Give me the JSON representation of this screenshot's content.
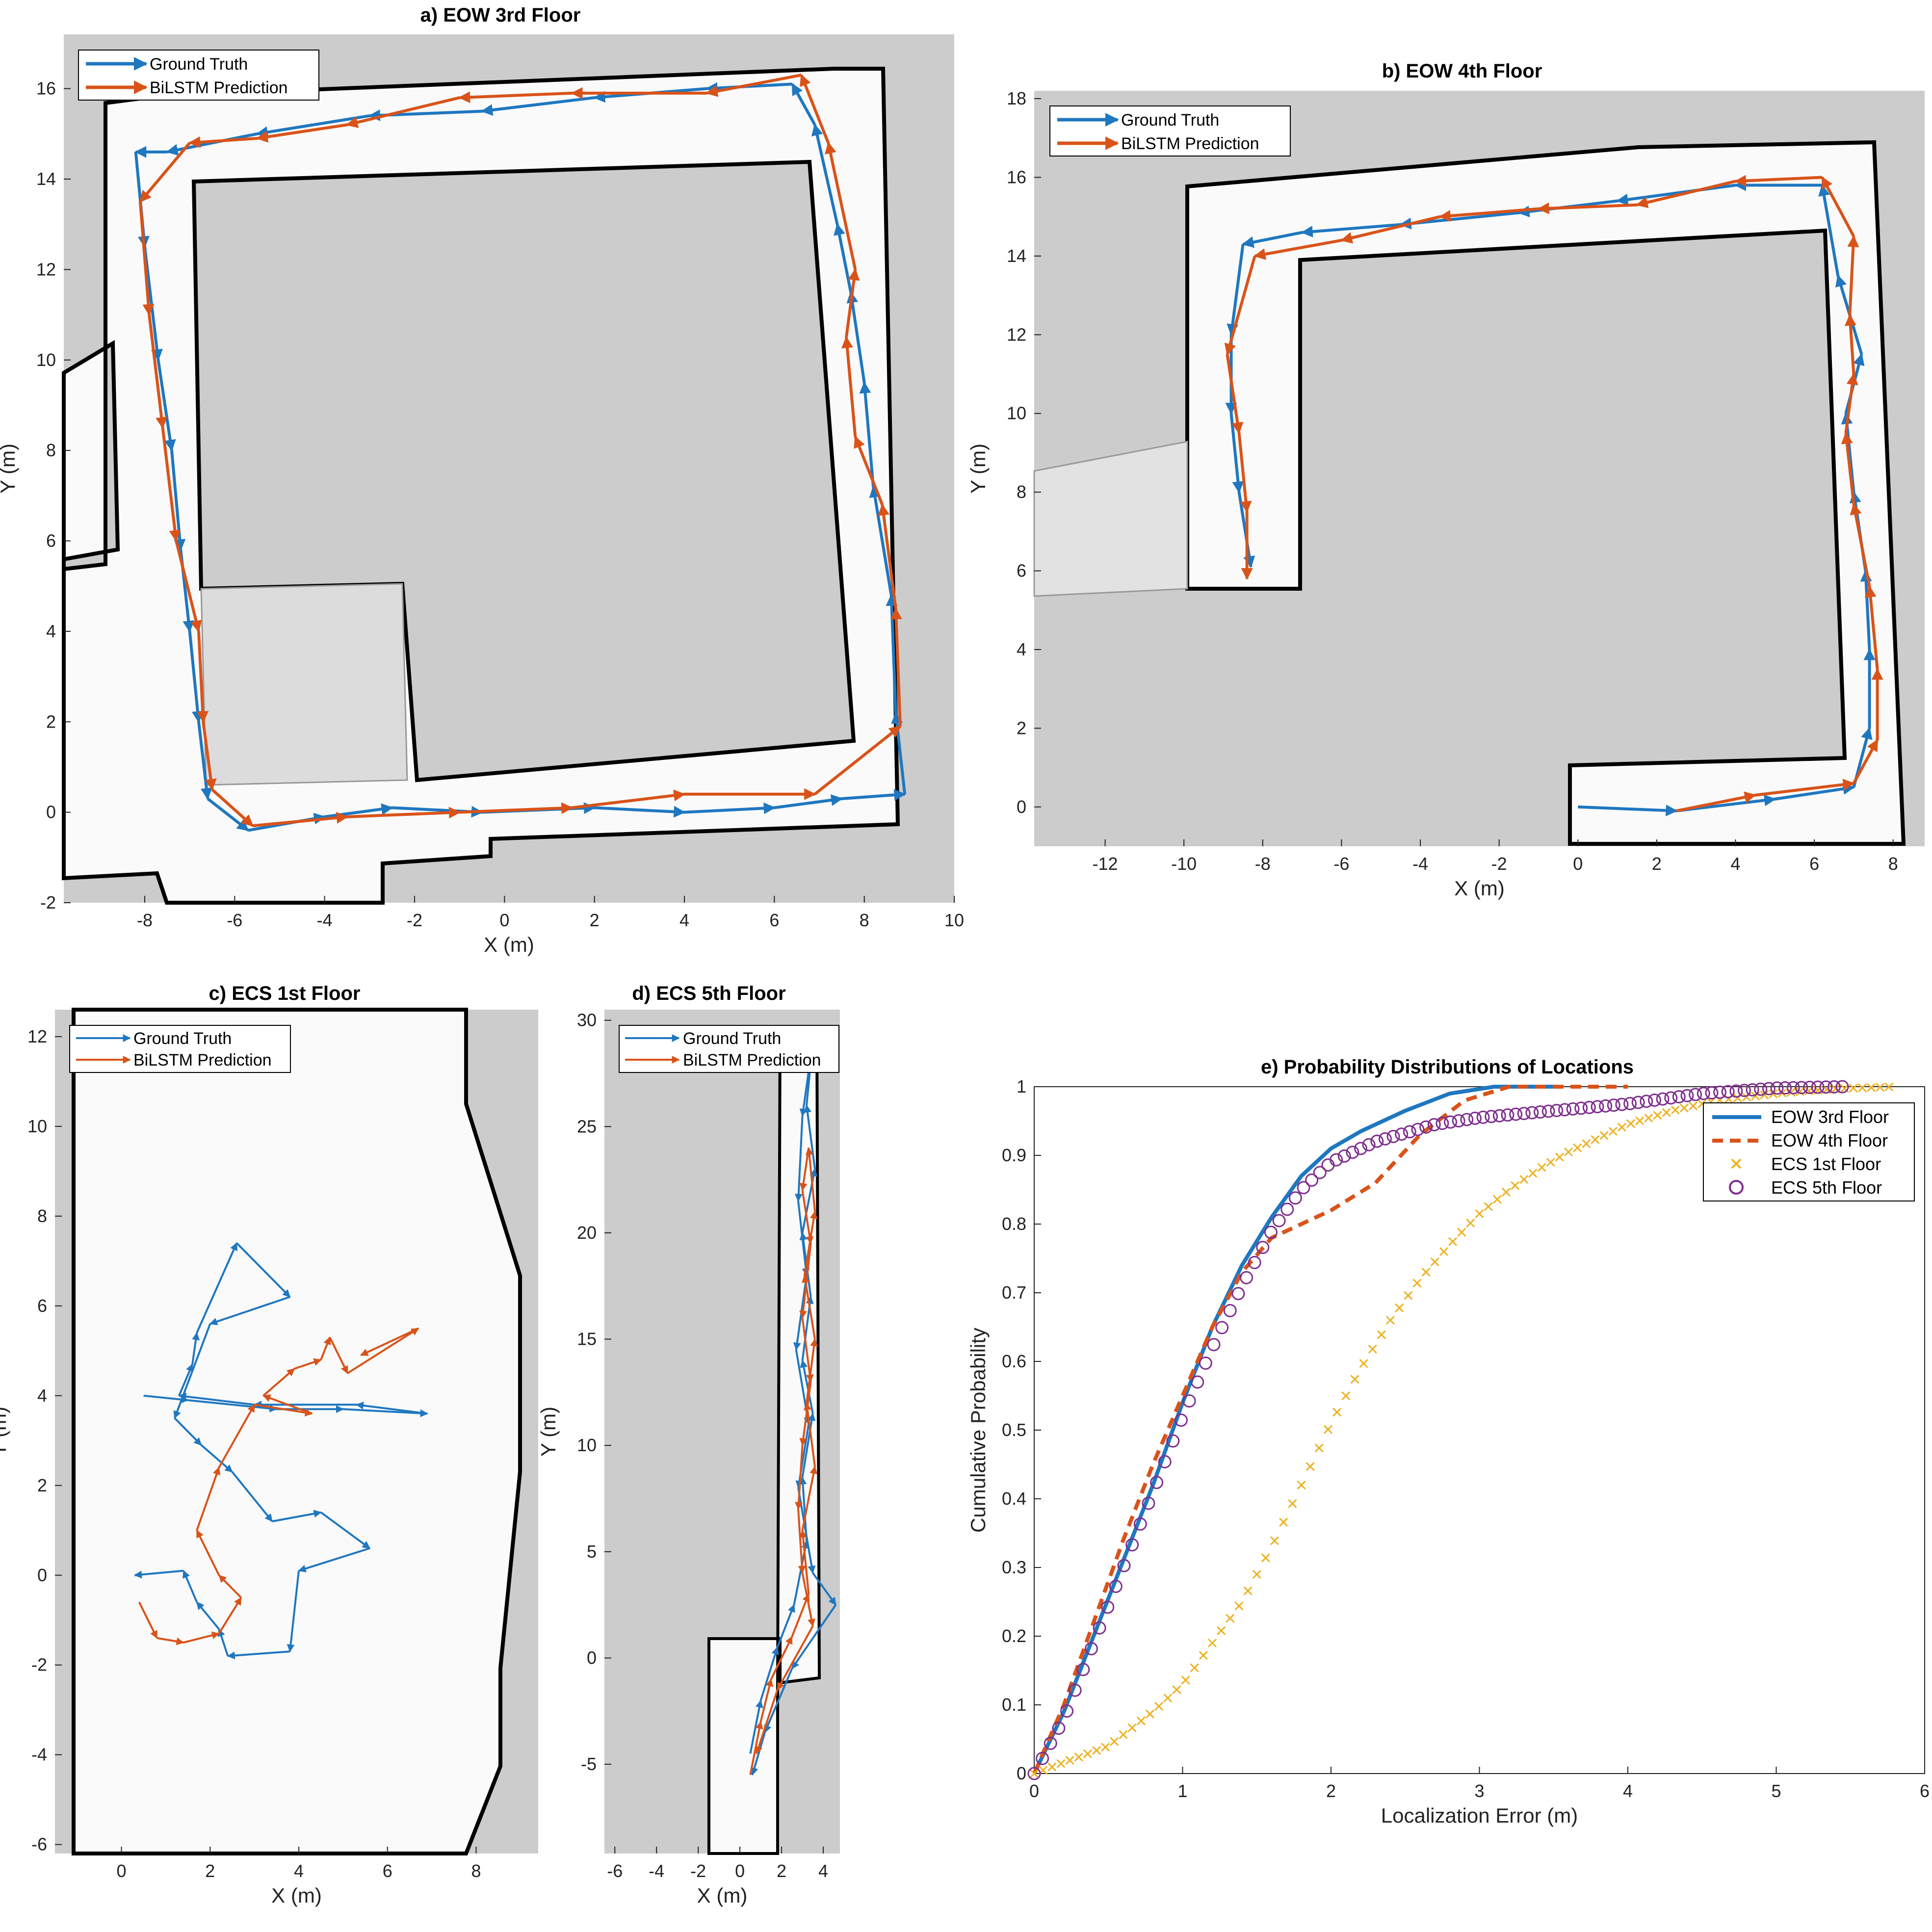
{
  "colors": {
    "ground_truth": "#1f77c0",
    "prediction": "#d95319",
    "ecs1": "#edb120",
    "ecs5": "#7e2f8e",
    "map_gray": "#cccccc",
    "free": "#fafafa",
    "wall": "#000000"
  },
  "legend": {
    "ground_truth": "Ground Truth",
    "prediction": "BiLSTM Prediction"
  },
  "chart_data": [
    {
      "id": "a",
      "type": "map-trajectory",
      "title": "a) EOW 3rd Floor",
      "xlabel": "X (m)",
      "ylabel": "Y (m)",
      "xlim": [
        -9.8,
        10.0
      ],
      "ylim": [
        -2.0,
        17.2
      ],
      "xticks": [
        -8,
        -6,
        -4,
        -2,
        0,
        2,
        4,
        6,
        8,
        10
      ],
      "yticks": [
        -2,
        0,
        2,
        4,
        6,
        8,
        10,
        12,
        14,
        16
      ],
      "series": [
        {
          "name": "Ground Truth",
          "points": [
            [
              8.9,
              0.4
            ],
            [
              8.7,
              2.2
            ],
            [
              8.6,
              4.8
            ],
            [
              8.2,
              7.2
            ],
            [
              8.0,
              9.5
            ],
            [
              7.7,
              11.5
            ],
            [
              7.4,
              13.0
            ],
            [
              6.9,
              15.2
            ],
            [
              6.4,
              16.1
            ],
            [
              4.5,
              16.0
            ],
            [
              2.0,
              15.8
            ],
            [
              -0.5,
              15.5
            ],
            [
              -3.0,
              15.4
            ],
            [
              -5.5,
              15.0
            ],
            [
              -7.5,
              14.6
            ],
            [
              -8.2,
              14.6
            ],
            [
              -8.0,
              12.5
            ],
            [
              -7.7,
              10.0
            ],
            [
              -7.4,
              8.0
            ],
            [
              -7.2,
              5.8
            ],
            [
              -7.0,
              4.0
            ],
            [
              -6.8,
              2.0
            ],
            [
              -6.6,
              0.3
            ],
            [
              -5.7,
              -0.4
            ],
            [
              -4.0,
              -0.1
            ],
            [
              -2.5,
              0.1
            ],
            [
              -0.5,
              0.0
            ],
            [
              2.0,
              0.1
            ],
            [
              4.0,
              0.0
            ],
            [
              6.0,
              0.1
            ],
            [
              7.5,
              0.3
            ],
            [
              8.9,
              0.4
            ]
          ]
        },
        {
          "name": "BiLSTM Prediction",
          "points": [
            [
              6.9,
              0.4
            ],
            [
              8.8,
              1.9
            ],
            [
              8.7,
              4.5
            ],
            [
              8.4,
              6.8
            ],
            [
              7.8,
              8.3
            ],
            [
              7.6,
              10.5
            ],
            [
              7.8,
              12.0
            ],
            [
              7.2,
              14.8
            ],
            [
              6.6,
              16.3
            ],
            [
              4.5,
              15.9
            ],
            [
              1.5,
              15.9
            ],
            [
              -1.0,
              15.8
            ],
            [
              -3.5,
              15.2
            ],
            [
              -5.5,
              14.9
            ],
            [
              -7.0,
              14.8
            ],
            [
              -8.1,
              13.5
            ],
            [
              -7.9,
              11.0
            ],
            [
              -7.6,
              8.5
            ],
            [
              -7.3,
              6.0
            ],
            [
              -6.8,
              4.0
            ],
            [
              -6.7,
              2.0
            ],
            [
              -6.5,
              0.5
            ],
            [
              -5.6,
              -0.3
            ],
            [
              -3.5,
              -0.1
            ],
            [
              -1.0,
              0.0
            ],
            [
              1.5,
              0.1
            ],
            [
              4.0,
              0.4
            ],
            [
              6.9,
              0.4
            ]
          ]
        }
      ]
    },
    {
      "id": "b",
      "type": "map-trajectory",
      "title": "b) EOW 4th Floor",
      "xlabel": "X (m)",
      "ylabel": "Y (m)",
      "xlim": [
        -13.8,
        8.8
      ],
      "ylim": [
        -1.0,
        18.2
      ],
      "xticks": [
        -12,
        -10,
        -8,
        -6,
        -4,
        -2,
        0,
        2,
        4,
        6,
        8
      ],
      "yticks": [
        0,
        2,
        4,
        6,
        8,
        10,
        12,
        14,
        16,
        18
      ],
      "series": [
        {
          "name": "Ground Truth",
          "points": [
            [
              0.0,
              0.0
            ],
            [
              2.5,
              -0.1
            ],
            [
              5.0,
              0.2
            ],
            [
              7.0,
              0.5
            ],
            [
              7.4,
              2.0
            ],
            [
              7.4,
              4.0
            ],
            [
              7.3,
              6.0
            ],
            [
              7.0,
              8.0
            ],
            [
              6.8,
              10.0
            ],
            [
              7.2,
              11.5
            ],
            [
              6.6,
              13.5
            ],
            [
              6.2,
              15.8
            ],
            [
              4.0,
              15.8
            ],
            [
              1.0,
              15.4
            ],
            [
              -1.5,
              15.1
            ],
            [
              -4.5,
              14.8
            ],
            [
              -7.0,
              14.6
            ],
            [
              -8.5,
              14.3
            ],
            [
              -8.8,
              12.0
            ],
            [
              -8.8,
              10.0
            ],
            [
              -8.6,
              8.0
            ],
            [
              -8.3,
              6.1
            ]
          ]
        },
        {
          "name": "BiLSTM Prediction",
          "points": [
            [
              2.5,
              -0.1
            ],
            [
              4.5,
              0.3
            ],
            [
              7.0,
              0.6
            ],
            [
              7.6,
              1.7
            ],
            [
              7.6,
              3.5
            ],
            [
              7.4,
              5.6
            ],
            [
              7.0,
              7.7
            ],
            [
              6.8,
              9.5
            ],
            [
              7.0,
              11.0
            ],
            [
              6.9,
              12.5
            ],
            [
              7.0,
              14.5
            ],
            [
              6.2,
              16.0
            ],
            [
              4.0,
              15.9
            ],
            [
              1.5,
              15.3
            ],
            [
              -1.0,
              15.2
            ],
            [
              -3.5,
              15.0
            ],
            [
              -6.0,
              14.4
            ],
            [
              -8.2,
              14.0
            ],
            [
              -8.9,
              11.5
            ],
            [
              -8.6,
              9.5
            ],
            [
              -8.4,
              7.5
            ],
            [
              -8.4,
              5.8
            ]
          ]
        }
      ]
    },
    {
      "id": "c",
      "type": "map-trajectory",
      "title": "c) ECS 1st Floor",
      "xlabel": "X (m)",
      "ylabel": "Y (m)",
      "xlim": [
        -1.5,
        9.4
      ],
      "ylim": [
        -6.2,
        12.6
      ],
      "xticks": [
        0,
        2,
        4,
        6,
        8
      ],
      "yticks": [
        -6,
        -4,
        -2,
        0,
        2,
        4,
        6,
        8,
        10,
        12
      ],
      "series": [
        {
          "name": "Ground Truth",
          "points": [
            [
              0.5,
              4.0
            ],
            [
              1.5,
              3.9
            ],
            [
              3.5,
              3.7
            ],
            [
              5.0,
              3.7
            ],
            [
              6.9,
              3.6
            ],
            [
              5.3,
              3.8
            ],
            [
              3.0,
              3.8
            ],
            [
              1.3,
              4.0
            ],
            [
              1.6,
              4.7
            ],
            [
              1.7,
              5.4
            ],
            [
              2.6,
              7.4
            ],
            [
              3.8,
              6.2
            ],
            [
              2.0,
              5.6
            ],
            [
              1.2,
              3.5
            ],
            [
              1.8,
              2.9
            ],
            [
              2.5,
              2.3
            ],
            [
              3.4,
              1.2
            ],
            [
              4.5,
              1.4
            ],
            [
              5.6,
              0.6
            ],
            [
              4.0,
              0.1
            ],
            [
              3.8,
              -1.7
            ],
            [
              2.4,
              -1.8
            ],
            [
              2.2,
              -1.2
            ],
            [
              1.7,
              -0.6
            ],
            [
              1.4,
              0.1
            ],
            [
              0.3,
              0.0
            ]
          ]
        },
        {
          "name": "BiLSTM Prediction",
          "points": [
            [
              0.4,
              -0.6
            ],
            [
              0.8,
              -1.4
            ],
            [
              1.4,
              -1.5
            ],
            [
              2.2,
              -1.3
            ],
            [
              2.7,
              -0.5
            ],
            [
              2.2,
              0.0
            ],
            [
              1.7,
              1.0
            ],
            [
              2.2,
              2.4
            ],
            [
              3.0,
              3.8
            ],
            [
              4.3,
              3.6
            ],
            [
              3.2,
              4.0
            ],
            [
              3.9,
              4.6
            ],
            [
              4.5,
              4.8
            ],
            [
              4.7,
              5.3
            ],
            [
              5.1,
              4.5
            ],
            [
              6.7,
              5.5
            ],
            [
              5.4,
              4.9
            ]
          ]
        }
      ]
    },
    {
      "id": "d",
      "type": "map-trajectory",
      "title": "d) ECS 5th Floor",
      "xlabel": "X (m)",
      "ylabel": "Y (m)",
      "xlim": [
        -6.5,
        4.8
      ],
      "ylim": [
        -9.2,
        30.5
      ],
      "xticks": [
        -6,
        -4,
        -2,
        0,
        2,
        4
      ],
      "yticks": [
        -5,
        0,
        5,
        10,
        15,
        20,
        25,
        30
      ],
      "series": [
        {
          "name": "Ground Truth",
          "points": [
            [
              0.5,
              -4.5
            ],
            [
              1.0,
              -2.0
            ],
            [
              1.8,
              0.5
            ],
            [
              2.6,
              2.5
            ],
            [
              3.2,
              5.5
            ],
            [
              3.0,
              8.5
            ],
            [
              3.5,
              11.5
            ],
            [
              3.0,
              14.0
            ],
            [
              3.4,
              17.0
            ],
            [
              3.0,
              20.0
            ],
            [
              3.6,
              23.0
            ],
            [
              3.2,
              26.0
            ],
            [
              3.5,
              29.0
            ],
            [
              3.0,
              25.5
            ],
            [
              2.8,
              21.5
            ],
            [
              3.2,
              18.0
            ],
            [
              2.7,
              14.5
            ],
            [
              3.3,
              11.0
            ],
            [
              2.8,
              8.0
            ],
            [
              3.5,
              4.0
            ],
            [
              4.6,
              2.5
            ],
            [
              2.5,
              -0.5
            ],
            [
              1.2,
              -3.5
            ],
            [
              0.6,
              -5.5
            ]
          ]
        },
        {
          "name": "BiLSTM Prediction",
          "points": [
            [
              0.5,
              -5.5
            ],
            [
              1.0,
              -3.0
            ],
            [
              1.5,
              -1.0
            ],
            [
              2.5,
              1.0
            ],
            [
              3.3,
              3.0
            ],
            [
              3.0,
              6.0
            ],
            [
              3.6,
              9.0
            ],
            [
              3.2,
              12.0
            ],
            [
              3.6,
              15.0
            ],
            [
              3.1,
              18.0
            ],
            [
              3.6,
              21.0
            ],
            [
              3.3,
              24.0
            ],
            [
              3.0,
              22.0
            ],
            [
              3.4,
              19.5
            ],
            [
              3.0,
              16.0
            ],
            [
              3.4,
              13.0
            ],
            [
              3.0,
              10.0
            ],
            [
              2.8,
              7.0
            ],
            [
              3.0,
              4.0
            ],
            [
              3.5,
              1.5
            ],
            [
              1.8,
              -1.5
            ],
            [
              0.8,
              -4.5
            ]
          ]
        }
      ]
    },
    {
      "id": "e",
      "type": "line",
      "title": "e) Probability Distributions of Locations",
      "xlabel": "Localization Error (m)",
      "ylabel": "Cumulative Probability",
      "xlim": [
        0,
        6
      ],
      "ylim": [
        0,
        1
      ],
      "xticks": [
        0,
        1,
        2,
        3,
        4,
        5,
        6
      ],
      "yticks": [
        0,
        0.1,
        0.2,
        0.3,
        0.4,
        0.5,
        0.6,
        0.7,
        0.8,
        0.9,
        1
      ],
      "legend_position": "top-right",
      "series": [
        {
          "name": "EOW 3rd Floor",
          "style": "solid",
          "x": [
            0,
            0.2,
            0.4,
            0.6,
            0.8,
            1.0,
            1.2,
            1.4,
            1.6,
            1.8,
            2.0,
            2.2,
            2.5,
            2.8,
            3.1,
            3.5
          ],
          "y": [
            0,
            0.09,
            0.2,
            0.31,
            0.42,
            0.54,
            0.65,
            0.74,
            0.81,
            0.87,
            0.91,
            0.935,
            0.965,
            0.99,
            1.0,
            1.0
          ]
        },
        {
          "name": "EOW 4th Floor",
          "style": "dashed",
          "x": [
            0,
            0.2,
            0.4,
            0.6,
            0.8,
            1.0,
            1.2,
            1.4,
            1.6,
            1.8,
            2.0,
            2.3,
            2.6,
            2.9,
            3.2,
            3.6,
            4.0
          ],
          "y": [
            0,
            0.1,
            0.22,
            0.34,
            0.45,
            0.55,
            0.65,
            0.73,
            0.78,
            0.8,
            0.82,
            0.86,
            0.93,
            0.98,
            1.0,
            1.0,
            1.0
          ]
        },
        {
          "name": "ECS 1st Floor",
          "style": "x-markers",
          "x": [
            0,
            0.5,
            0.8,
            1.0,
            1.2,
            1.4,
            1.6,
            1.8,
            2.0,
            2.2,
            2.4,
            2.6,
            2.8,
            3.0,
            3.2,
            3.4,
            3.6,
            3.8,
            4.0,
            4.3,
            4.6,
            5.0,
            5.4,
            5.8
          ],
          "y": [
            0,
            0.04,
            0.09,
            0.13,
            0.19,
            0.25,
            0.33,
            0.42,
            0.51,
            0.59,
            0.66,
            0.72,
            0.77,
            0.815,
            0.85,
            0.88,
            0.905,
            0.925,
            0.945,
            0.965,
            0.98,
            0.99,
            0.997,
            1.0
          ]
        },
        {
          "name": "ECS 5th Floor",
          "style": "o-markers",
          "x": [
            0,
            0.2,
            0.4,
            0.6,
            0.8,
            1.0,
            1.2,
            1.4,
            1.6,
            1.8,
            2.0,
            2.3,
            2.7,
            3.0,
            3.5,
            4.0,
            4.5,
            5.0,
            5.45
          ],
          "y": [
            0,
            0.08,
            0.19,
            0.3,
            0.41,
            0.52,
            0.62,
            0.71,
            0.79,
            0.85,
            0.89,
            0.92,
            0.945,
            0.955,
            0.965,
            0.975,
            0.99,
            0.998,
            1.0
          ]
        }
      ]
    }
  ]
}
